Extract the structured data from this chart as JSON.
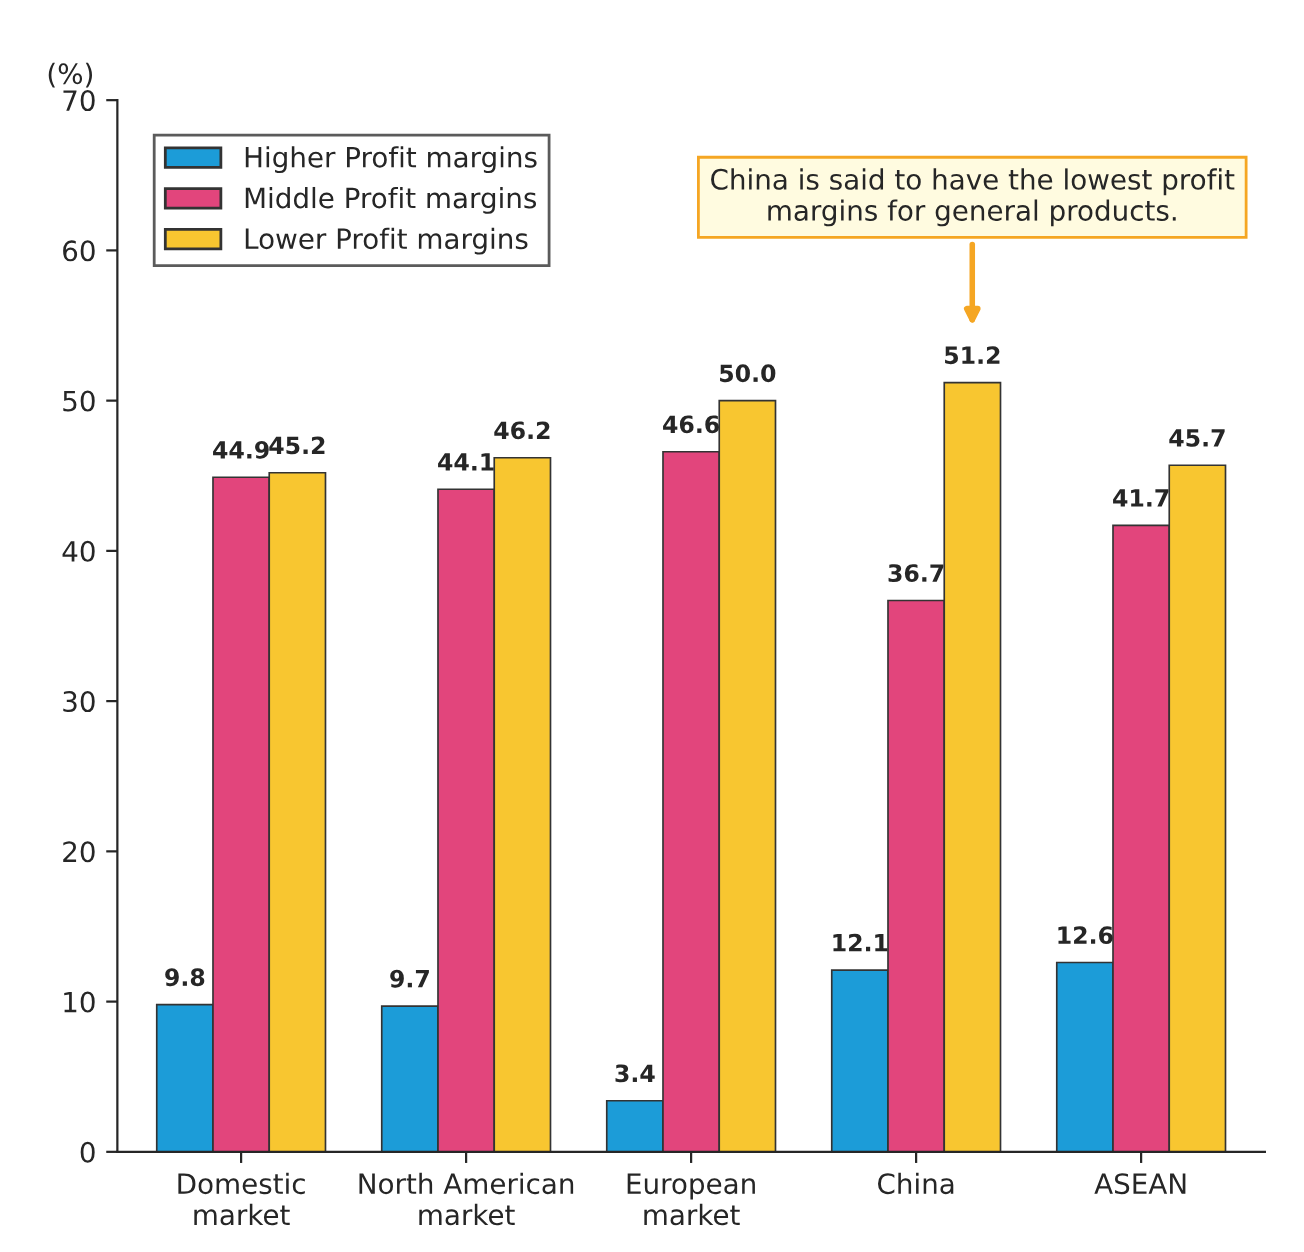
{
  "chart_data": {
    "type": "bar",
    "ylabel": "(%)",
    "categories": [
      "Domestic\nmarket",
      "North American\nmarket",
      "European\nmarket",
      "China",
      "ASEAN"
    ],
    "series": [
      {
        "name": "Higher Profit margins",
        "color": "#1c9cd8",
        "values": [
          9.8,
          9.7,
          3.4,
          12.1,
          12.6
        ],
        "value_labels": [
          "9.8",
          "9.7",
          "3.4",
          "12.1",
          "12.6"
        ]
      },
      {
        "name": "Middle Profit margins",
        "color": "#e2457c",
        "values": [
          44.9,
          44.1,
          46.6,
          36.7,
          41.7
        ],
        "value_labels": [
          "44.9",
          "44.1",
          "46.6",
          "36.7",
          "41.7"
        ]
      },
      {
        "name": "Lower Profit margins",
        "color": "#f8c630",
        "values": [
          45.2,
          46.2,
          50.0,
          51.2,
          45.7
        ],
        "value_labels": [
          "45.2",
          "46.2",
          "50.0",
          "51.2",
          "45.7"
        ]
      }
    ],
    "ylim": [
      0,
      70
    ],
    "yticks": [
      0,
      10,
      20,
      30,
      40,
      50,
      60,
      70
    ],
    "legend": "top left",
    "grid": false,
    "annotations": [
      "China is said to have the lowest profit\nmargins for general products."
    ]
  }
}
